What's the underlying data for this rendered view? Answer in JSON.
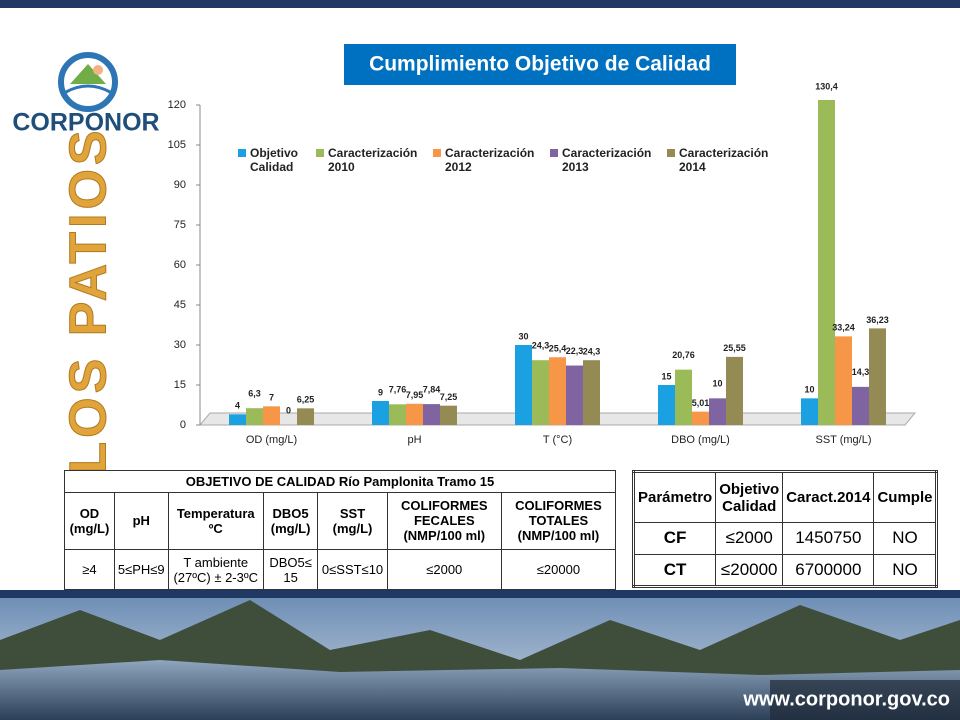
{
  "header": {
    "logo_text": "CORPONOR",
    "location": "LOS PATIOS"
  },
  "chart_data": {
    "type": "bar",
    "title": "Cumplimiento Objetivo de Calidad",
    "categories": [
      "OD (mg/L)",
      "pH",
      "T (°C)",
      "DBO (mg/L)",
      "SST (mg/L)"
    ],
    "series": [
      {
        "name": "Objetivo Calidad",
        "color": "#1ba1e2",
        "values": [
          4,
          9,
          30,
          15,
          10
        ],
        "value_labels": [
          "4",
          "9",
          "30",
          "15",
          "10"
        ]
      },
      {
        "name": "Caracterización 2010",
        "color": "#9bbb59",
        "values": [
          6.3,
          7.76,
          24.3,
          20.76,
          130.4
        ],
        "value_labels": [
          "6,3",
          "7,76",
          "24,3",
          "20,76",
          "130,4"
        ]
      },
      {
        "name": "Caracterización 2012",
        "color": "#f79646",
        "values": [
          7,
          7.95,
          25.4,
          5.01,
          33.24
        ],
        "value_labels": [
          "7",
          "7,95",
          "25,4",
          "5,01",
          "33,24"
        ]
      },
      {
        "name": "Caracterización 2013",
        "color": "#8064a2",
        "values": [
          0,
          7.84,
          22.3,
          10,
          14.3
        ],
        "value_labels": [
          "0",
          "7,84",
          "22,3",
          "10",
          "14,3"
        ]
      },
      {
        "name": "Caracterización 2014",
        "color": "#948a54",
        "values": [
          6.25,
          7.25,
          24.3,
          25.55,
          36.23
        ],
        "value_labels": [
          "6,25",
          "7,25",
          "24,3",
          "25,55",
          "36,23"
        ]
      }
    ],
    "ylim": [
      0,
      120
    ],
    "yticks": [
      0,
      15,
      30,
      45,
      60,
      75,
      90,
      105,
      120
    ],
    "legend": "top"
  },
  "quality_table": {
    "title": "OBJETIVO DE CALIDAD Río Pamplonita Tramo 15",
    "headers": [
      "OD (mg/L)",
      "pH",
      "Temperatura ºC",
      "DBO5 (mg/L)",
      "SST (mg/L)",
      "COLIFORMES FECALES (NMP/100 ml)",
      "COLIFORMES TOTALES (NMP/100 ml)"
    ],
    "rows": [
      [
        "≥4",
        "5≤PH≤9",
        "T ambiente (27ºC) ± 2-3ºC",
        "DBO5≤ 15",
        "0≤SST≤10",
        "≤2000",
        "≤20000"
      ]
    ]
  },
  "compliance_table": {
    "headers": [
      "Parámetro",
      "Objetivo Calidad",
      "Caract.2014",
      "Cumple"
    ],
    "rows": [
      [
        "CF",
        "≤2000",
        "1450750",
        "NO"
      ],
      [
        "CT",
        "≤20000",
        "6700000",
        "NO"
      ]
    ]
  },
  "footer": {
    "url": "www.corponor.gov.co"
  }
}
